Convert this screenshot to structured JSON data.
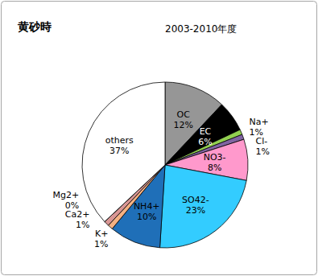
{
  "chart_data": {
    "type": "pie",
    "title": "黄砂時",
    "subtitle": "2003-2010年度",
    "categories": [
      "OC",
      "EC",
      "Na+",
      "Cl-",
      "NO3-",
      "SO42-",
      "NH4+",
      "K+",
      "Ca2+",
      "Mg2+",
      "others"
    ],
    "values": [
      12,
      6,
      1,
      1,
      8,
      23,
      10,
      1,
      1,
      0,
      37
    ],
    "value_labels": [
      "12%",
      "6%",
      "1%",
      "1%",
      "8%",
      "23%",
      "10%",
      "1%",
      "1%",
      "0%",
      "37%"
    ],
    "colors": [
      "#969696",
      "#000000",
      "#92d050",
      "#8064a2",
      "#ff99cc",
      "#33ccff",
      "#1f6fb8",
      "#f4b183",
      "#d99694",
      "#c4d79b",
      "#ffffff"
    ],
    "data_labels": true
  }
}
